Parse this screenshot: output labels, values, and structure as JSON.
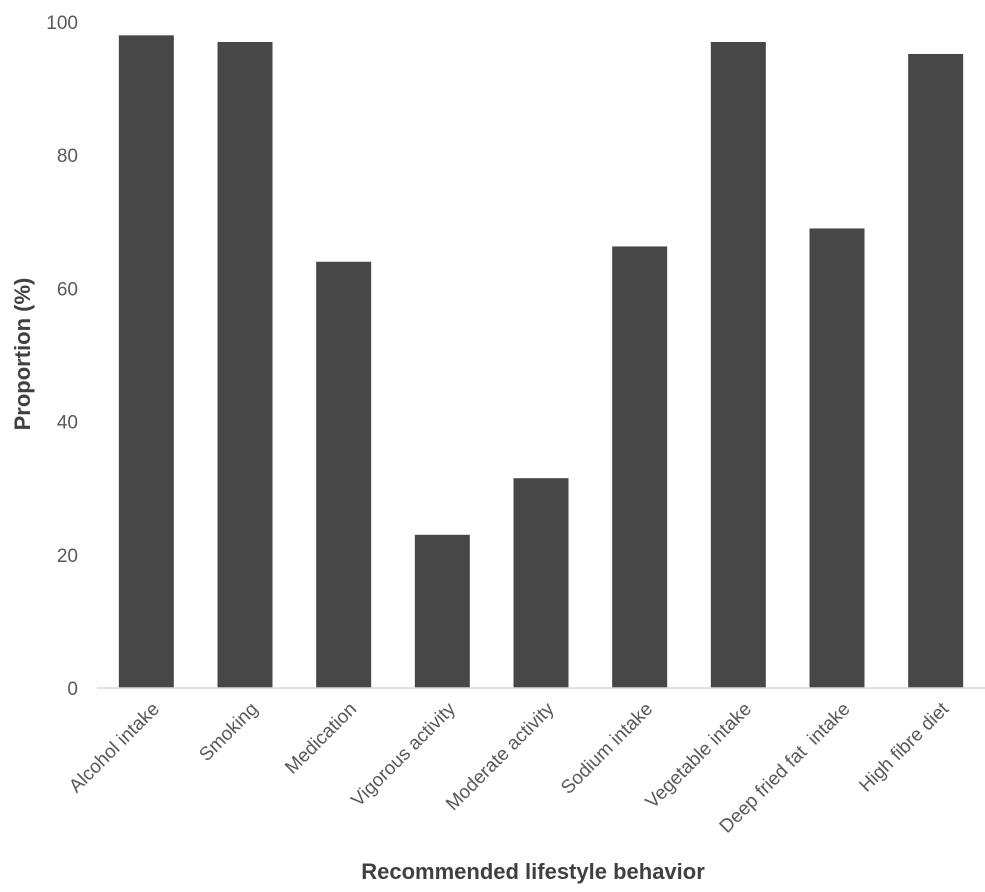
{
  "chart_data": {
    "type": "bar",
    "title": "",
    "xlabel": "Recommended lifestyle behavior",
    "ylabel": "Proportion (%)",
    "categories": [
      "Alcohol intake",
      "Smoking",
      "Medication",
      "Vigorous activity",
      "Moderate activity",
      "Sodium intake",
      "Vegetable intake",
      "Deep fried fat  intake",
      "High fibre diet"
    ],
    "values": [
      98,
      97,
      64,
      23,
      31.5,
      66.3,
      97,
      69,
      95.2
    ],
    "ylim": [
      0,
      100
    ],
    "yticks": [
      0,
      20,
      40,
      60,
      80,
      100
    ],
    "grid": false,
    "legend": "none",
    "bar_color": "#474747",
    "axis_color": "#d9d9d9",
    "text_color": "#595959"
  }
}
